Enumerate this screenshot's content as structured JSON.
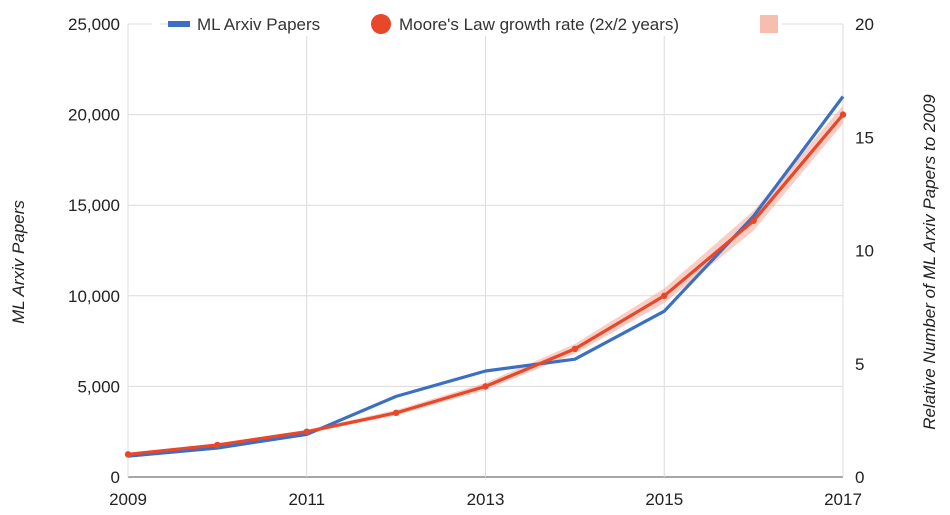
{
  "chart_data": {
    "type": "line",
    "x": [
      2009,
      2010,
      2011,
      2012,
      2013,
      2014,
      2015,
      2016,
      2017
    ],
    "x_ticks": [
      "2009",
      "2011",
      "2013",
      "2015",
      "2017"
    ],
    "xlim": [
      2009,
      2017
    ],
    "ylabel": "ML Arxiv Papers",
    "ylim": [
      0,
      25000
    ],
    "y_ticks": [
      "0",
      "5,000",
      "10,000",
      "15,000",
      "20,000",
      "25,000"
    ],
    "ylabel_right": "Relative Number of ML Arxiv Papers  to 2009",
    "ylim_right": [
      0,
      20
    ],
    "y_ticks_right": [
      "0",
      "5",
      "10",
      "15",
      "20"
    ],
    "grid": true,
    "legend_position": "top",
    "series": [
      {
        "name": "ML Arxiv Papers",
        "color": "#3b6fc4",
        "values": [
          1150,
          1600,
          2350,
          4450,
          5850,
          6500,
          9150,
          14400,
          21000
        ]
      },
      {
        "name": "Moore's Law growth rate (2x/2 years)",
        "color": "#e8472a",
        "values": [
          1250,
          1770,
          2500,
          3540,
          5000,
          7070,
          10000,
          14140,
          20000
        ]
      }
    ],
    "band": {
      "name": "",
      "color": "#f4a896",
      "lower": [
        1200,
        1700,
        2400,
        3400,
        4800,
        6800,
        9600,
        13600,
        19500
      ],
      "upper": [
        1300,
        1850,
        2600,
        3700,
        5200,
        7350,
        10400,
        14700,
        20500
      ]
    }
  }
}
